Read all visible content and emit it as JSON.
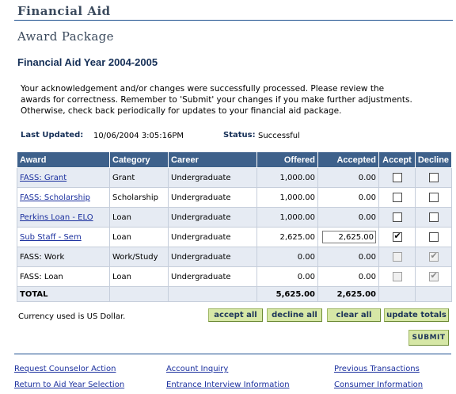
{
  "header": {
    "title": "Financial Aid"
  },
  "section": {
    "title": "Award Package",
    "aid_year": "Financial Aid Year 2004-2005"
  },
  "message": {
    "lines": [
      "Your acknowledgement and/or changes were successfully processed.  Please review the",
      "awards for correctness.  Remember to 'Submit' your changes if you make further adjustments.",
      "Otherwise, check back periodically for updates to your financial aid package."
    ]
  },
  "status_row": {
    "last_updated_label": "Last Updated:",
    "last_updated_value": "10/06/2004  3:05:16PM",
    "status_label": "Status:",
    "status_value": "Successful"
  },
  "table": {
    "headers": {
      "award": "Award",
      "category": "Category",
      "career": "Career",
      "offered": "Offered",
      "accepted": "Accepted",
      "accept": "Accept",
      "decline": "Decline"
    },
    "rows": [
      {
        "award": "FASS: Grant",
        "award_is_link": true,
        "category": "Grant",
        "career": "Undergraduate",
        "offered": "1,000.00",
        "accepted": "0.00",
        "accepted_editable": false,
        "accept_checked": false,
        "accept_disabled": false,
        "decline_checked": false,
        "decline_disabled": false
      },
      {
        "award": "FASS: Scholarship",
        "award_is_link": true,
        "category": "Scholarship",
        "career": "Undergraduate",
        "offered": "1,000.00",
        "accepted": "0.00",
        "accepted_editable": false,
        "accept_checked": false,
        "accept_disabled": false,
        "decline_checked": false,
        "decline_disabled": false
      },
      {
        "award": "Perkins Loan - ELO",
        "award_is_link": true,
        "category": "Loan",
        "career": "Undergraduate",
        "offered": "1,000.00",
        "accepted": "0.00",
        "accepted_editable": false,
        "accept_checked": false,
        "accept_disabled": false,
        "decline_checked": false,
        "decline_disabled": false
      },
      {
        "award": "Sub Staff - Sem",
        "award_is_link": true,
        "category": "Loan",
        "career": "Undergraduate",
        "offered": "2,625.00",
        "accepted": "2,625.00",
        "accepted_editable": true,
        "accept_checked": true,
        "accept_disabled": false,
        "decline_checked": false,
        "decline_disabled": false
      },
      {
        "award": "FASS: Work",
        "award_is_link": false,
        "category": "Work/Study",
        "career": "Undergraduate",
        "offered": "0.00",
        "accepted": "0.00",
        "accepted_editable": false,
        "accept_checked": false,
        "accept_disabled": true,
        "decline_checked": true,
        "decline_disabled": true
      },
      {
        "award": "FASS: Loan",
        "award_is_link": false,
        "category": "Loan",
        "career": "Undergraduate",
        "offered": "0.00",
        "accepted": "0.00",
        "accepted_editable": false,
        "accept_checked": false,
        "accept_disabled": true,
        "decline_checked": true,
        "decline_disabled": true
      }
    ],
    "total": {
      "label": "TOTAL",
      "offered": "5,625.00",
      "accepted": "2,625.00"
    }
  },
  "currency_note": "Currency used is US Dollar.",
  "buttons": {
    "accept_all": "accept all",
    "decline_all": "decline all",
    "clear_all": "clear all",
    "update_totals": "update totals",
    "submit": "SUBMIT"
  },
  "footer_links": {
    "request_counselor": "Request Counselor Action",
    "return_aid_year": "Return to Aid Year Selection",
    "account_inquiry": "Account Inquiry",
    "entrance_interview": "Entrance Interview Information",
    "previous_transactions": "Previous Transactions",
    "consumer_information": "Consumer Information"
  },
  "colors": {
    "header_bg": "#3e618b",
    "button_bg": "#d6e7a6",
    "link": "#1a2f9e",
    "rule": "#1d4f8f"
  },
  "icons": {
    "checked": "check-mark-icon"
  }
}
